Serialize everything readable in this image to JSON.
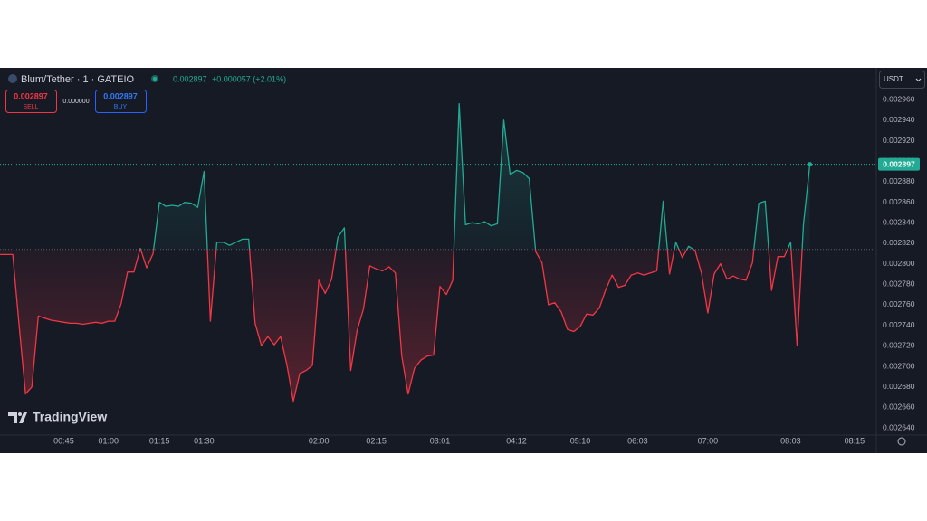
{
  "header": {
    "symbol": "Blum/Tether · 1 · GATEIO",
    "last": "0.002897",
    "change": "+0.000057 (+2.01%)",
    "sell_price": "0.002897",
    "sell": "SELL",
    "spread": "0.000000",
    "buy_price": "0.002897",
    "buy": "BUY",
    "currency": "USDT",
    "logo": "TradingView"
  },
  "chart_data": {
    "type": "baseline",
    "values": [
      0.002809,
      0.002809,
      0.002809,
      0.00274,
      0.002673,
      0.00268,
      0.002749,
      0.002747,
      0.002745,
      0.002744,
      0.002743,
      0.002742,
      0.002742,
      0.002741,
      0.002742,
      0.002743,
      0.002742,
      0.002744,
      0.002744,
      0.002761,
      0.002792,
      0.002792,
      0.002815,
      0.002796,
      0.00281,
      0.00286,
      0.002856,
      0.002857,
      0.002856,
      0.00286,
      0.002859,
      0.002855,
      0.00289,
      0.002744,
      0.002821,
      0.002821,
      0.002818,
      0.002821,
      0.002824,
      0.002824,
      0.002742,
      0.00272,
      0.002729,
      0.002721,
      0.002729,
      0.002701,
      0.002666,
      0.002693,
      0.002696,
      0.002701,
      0.002784,
      0.002771,
      0.002785,
      0.002826,
      0.002835,
      0.002696,
      0.002735,
      0.002756,
      0.002798,
      0.002795,
      0.002793,
      0.002797,
      0.002791,
      0.00271,
      0.002673,
      0.002698,
      0.002706,
      0.00271,
      0.002711,
      0.002778,
      0.00277,
      0.002784,
      0.002956,
      0.002838,
      0.00284,
      0.002839,
      0.002841,
      0.002837,
      0.002839,
      0.00294,
      0.002887,
      0.002891,
      0.002889,
      0.002883,
      0.002812,
      0.002801,
      0.00276,
      0.002762,
      0.002753,
      0.002736,
      0.002734,
      0.002739,
      0.002751,
      0.00275,
      0.002757,
      0.002775,
      0.002789,
      0.002777,
      0.002779,
      0.002789,
      0.002791,
      0.002789,
      0.002791,
      0.002793,
      0.002861,
      0.00279,
      0.002821,
      0.002806,
      0.002817,
      0.002813,
      0.002791,
      0.002752,
      0.00279,
      0.0028,
      0.002785,
      0.002788,
      0.002785,
      0.002784,
      0.002801,
      0.002859,
      0.002861,
      0.002774,
      0.002807,
      0.002807,
      0.002821,
      0.00272,
      0.002838,
      0.002897
    ],
    "baseline": 0.002814,
    "up_color": "#22ab94",
    "down_color": "#f23645",
    "xlim": [
      0,
      137
    ],
    "xticks": [
      {
        "value": 10,
        "label": "00:45"
      },
      {
        "value": 17,
        "label": "01:00"
      },
      {
        "value": 25,
        "label": "01:15"
      },
      {
        "value": 32,
        "label": "01:30"
      },
      {
        "value": 50,
        "label": "02:00"
      },
      {
        "value": 59,
        "label": "02:15"
      },
      {
        "value": 69,
        "label": "03:01"
      },
      {
        "value": 81,
        "label": "04:12"
      },
      {
        "value": 91,
        "label": "05:10"
      },
      {
        "value": 100,
        "label": "06:03"
      },
      {
        "value": 111,
        "label": "07:00"
      },
      {
        "value": 124,
        "label": "08:03"
      },
      {
        "value": 134,
        "label": "08:15"
      }
    ],
    "ylim": [
      0.002633,
      0.002991
    ],
    "yticks": [
      {
        "value": 0.00296,
        "label": "0.002960"
      },
      {
        "value": 0.00294,
        "label": "0.002940"
      },
      {
        "value": 0.00292,
        "label": "0.002920"
      },
      {
        "value": 0.0029,
        "label": "0.002900"
      },
      {
        "value": 0.00288,
        "label": "0.002880"
      },
      {
        "value": 0.00286,
        "label": "0.002860"
      },
      {
        "value": 0.00284,
        "label": "0.002840"
      },
      {
        "value": 0.00282,
        "label": "0.002820"
      },
      {
        "value": 0.0028,
        "label": "0.002800"
      },
      {
        "value": 0.00278,
        "label": "0.002780"
      },
      {
        "value": 0.00276,
        "label": "0.002760"
      },
      {
        "value": 0.00274,
        "label": "0.002740"
      },
      {
        "value": 0.00272,
        "label": "0.002720"
      },
      {
        "value": 0.0027,
        "label": "0.002700"
      },
      {
        "value": 0.00268,
        "label": "0.002680"
      },
      {
        "value": 0.00266,
        "label": "0.002660"
      },
      {
        "value": 0.00264,
        "label": "0.002640"
      }
    ],
    "grid": false
  }
}
